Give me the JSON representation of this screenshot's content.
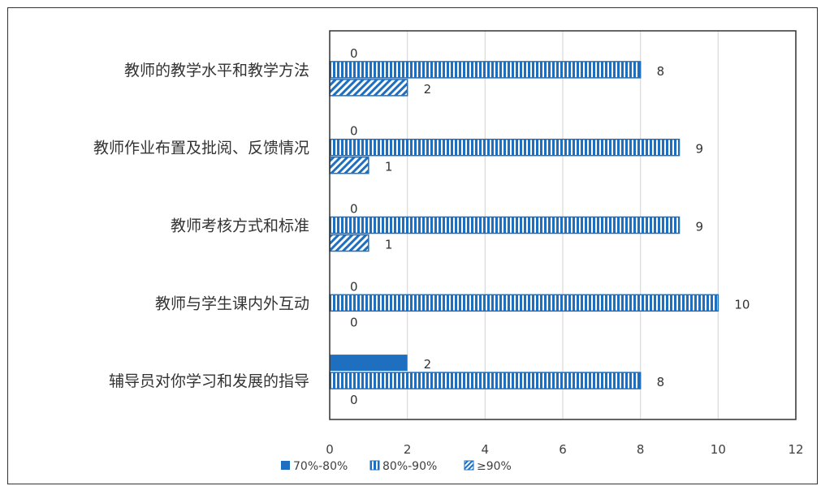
{
  "chart_data": {
    "type": "bar",
    "orientation": "horizontal",
    "categories": [
      "教师的教学水平和教学方法",
      "教师作业布置及批阅、反馈情况",
      "教师考核方式和标准",
      "教师与学生课内外互动",
      "辅导员对你学习和发展的指导"
    ],
    "series": [
      {
        "name": "70%-80%",
        "values": [
          0,
          0,
          0,
          0,
          2
        ],
        "color": "#1F6FC0",
        "pattern": "solid"
      },
      {
        "name": "80%-90%",
        "values": [
          8,
          9,
          9,
          10,
          8
        ],
        "color": "#1F6FC0",
        "pattern": "vertical-stripes"
      },
      {
        "name": "≥90%",
        "values": [
          2,
          1,
          1,
          0,
          0
        ],
        "color": "#1F6FC0",
        "pattern": "diagonal-stripes"
      }
    ],
    "xlim": [
      0,
      12
    ],
    "xticks": [
      0,
      2,
      4,
      6,
      8,
      10,
      12
    ],
    "grid": true,
    "legend": "bottom",
    "data_labels": true
  }
}
